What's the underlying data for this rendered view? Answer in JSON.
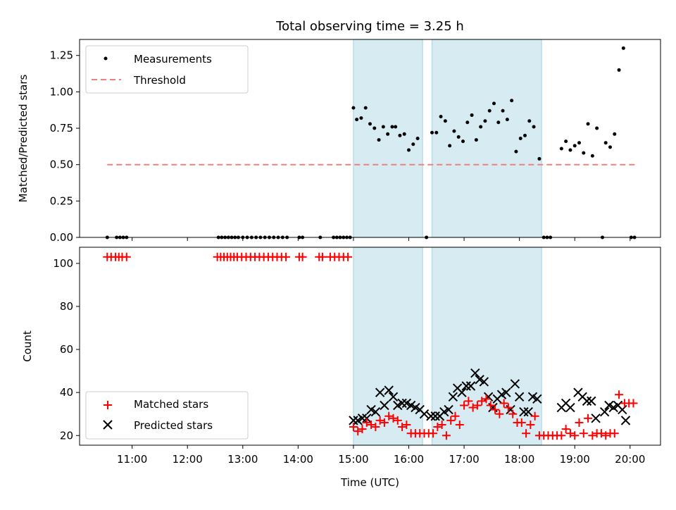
{
  "chart_data": [
    {
      "type": "scatter",
      "panel": "top",
      "title": "Total observing time = 3.25 h",
      "xlabel": "",
      "ylabel": "Matched/Predicted stars",
      "ylim": [
        0,
        1.36
      ],
      "xlim_hours": [
        10.05,
        20.55
      ],
      "yticks": [
        {
          "value": 0.0,
          "label": "0.00"
        },
        {
          "value": 0.25,
          "label": "0.25"
        },
        {
          "value": 0.5,
          "label": "0.50"
        },
        {
          "value": 0.75,
          "label": "0.75"
        },
        {
          "value": 1.0,
          "label": "1.00"
        },
        {
          "value": 1.25,
          "label": "1.25"
        }
      ],
      "legend": {
        "placement": "upper-left",
        "entries": [
          "Measurements",
          "Threshold"
        ]
      },
      "threshold": {
        "name": "Threshold",
        "value": 0.5,
        "x_range_hours": [
          10.55,
          20.1
        ],
        "color": "#f08080"
      },
      "shaded_hours": [
        [
          15.0,
          16.25
        ],
        [
          16.42,
          18.4
        ]
      ],
      "series": [
        {
          "name": "Measurements",
          "color": "#000000",
          "points": [
            [
              10.55,
              0
            ],
            [
              10.72,
              0
            ],
            [
              10.78,
              0
            ],
            [
              10.84,
              0
            ],
            [
              10.9,
              0
            ],
            [
              12.56,
              0
            ],
            [
              12.62,
              0
            ],
            [
              12.68,
              0
            ],
            [
              12.74,
              0
            ],
            [
              12.8,
              0
            ],
            [
              12.86,
              0
            ],
            [
              12.92,
              0
            ],
            [
              13.0,
              0
            ],
            [
              13.08,
              0
            ],
            [
              13.16,
              0
            ],
            [
              13.24,
              0
            ],
            [
              13.32,
              0
            ],
            [
              13.4,
              0
            ],
            [
              13.48,
              0
            ],
            [
              13.56,
              0
            ],
            [
              13.64,
              0
            ],
            [
              13.72,
              0
            ],
            [
              13.8,
              0
            ],
            [
              14.02,
              0
            ],
            [
              14.08,
              0
            ],
            [
              14.4,
              0
            ],
            [
              14.64,
              0
            ],
            [
              14.7,
              0
            ],
            [
              14.76,
              0
            ],
            [
              14.82,
              0
            ],
            [
              14.88,
              0
            ],
            [
              14.94,
              0
            ],
            [
              15.0,
              0.89
            ],
            [
              15.06,
              0.81
            ],
            [
              15.14,
              0.82
            ],
            [
              15.22,
              0.89
            ],
            [
              15.3,
              0.78
            ],
            [
              15.38,
              0.75
            ],
            [
              15.46,
              0.67
            ],
            [
              15.54,
              0.76
            ],
            [
              15.62,
              0.71
            ],
            [
              15.7,
              0.76
            ],
            [
              15.76,
              0.76
            ],
            [
              15.84,
              0.7
            ],
            [
              15.92,
              0.71
            ],
            [
              16.0,
              0.6
            ],
            [
              16.08,
              0.64
            ],
            [
              16.16,
              0.68
            ],
            [
              16.32,
              0.0
            ],
            [
              16.42,
              0.72
            ],
            [
              16.5,
              0.72
            ],
            [
              16.58,
              0.83
            ],
            [
              16.66,
              0.8
            ],
            [
              16.74,
              0.63
            ],
            [
              16.82,
              0.73
            ],
            [
              16.9,
              0.69
            ],
            [
              16.98,
              0.66
            ],
            [
              17.06,
              0.79
            ],
            [
              17.14,
              0.84
            ],
            [
              17.22,
              0.67
            ],
            [
              17.3,
              0.76
            ],
            [
              17.38,
              0.8
            ],
            [
              17.46,
              0.87
            ],
            [
              17.54,
              0.92
            ],
            [
              17.62,
              0.79
            ],
            [
              17.7,
              0.87
            ],
            [
              17.78,
              0.81
            ],
            [
              17.86,
              0.94
            ],
            [
              17.94,
              0.59
            ],
            [
              18.02,
              0.68
            ],
            [
              18.1,
              0.7
            ],
            [
              18.18,
              0.8
            ],
            [
              18.26,
              0.76
            ],
            [
              18.36,
              0.54
            ],
            [
              18.44,
              0.0
            ],
            [
              18.5,
              0.0
            ],
            [
              18.56,
              0.0
            ],
            [
              18.76,
              0.61
            ],
            [
              18.84,
              0.66
            ],
            [
              18.92,
              0.6
            ],
            [
              19.0,
              0.63
            ],
            [
              19.08,
              0.65
            ],
            [
              19.16,
              0.58
            ],
            [
              19.24,
              0.78
            ],
            [
              19.32,
              0.56
            ],
            [
              19.4,
              0.75
            ],
            [
              19.5,
              0.0
            ],
            [
              19.56,
              0.65
            ],
            [
              19.64,
              0.62
            ],
            [
              19.72,
              0.71
            ],
            [
              19.8,
              1.15
            ],
            [
              19.88,
              1.3
            ],
            [
              20.02,
              0.0
            ],
            [
              20.08,
              0.0
            ]
          ]
        }
      ]
    },
    {
      "type": "scatter",
      "panel": "bottom",
      "xlabel": "Time (UTC)",
      "ylabel": "Count",
      "ylim": [
        15.5,
        107.5
      ],
      "xlim_hours": [
        10.05,
        20.55
      ],
      "yticks": [
        {
          "value": 20,
          "label": "20"
        },
        {
          "value": 40,
          "label": "40"
        },
        {
          "value": 60,
          "label": "60"
        },
        {
          "value": 80,
          "label": "80"
        },
        {
          "value": 100,
          "label": "100"
        }
      ],
      "xticks": [
        {
          "value": 11,
          "label": "11:00"
        },
        {
          "value": 12,
          "label": "12:00"
        },
        {
          "value": 13,
          "label": "13:00"
        },
        {
          "value": 14,
          "label": "14:00"
        },
        {
          "value": 15,
          "label": "15:00"
        },
        {
          "value": 16,
          "label": "16:00"
        },
        {
          "value": 17,
          "label": "17:00"
        },
        {
          "value": 18,
          "label": "18:00"
        },
        {
          "value": 19,
          "label": "19:00"
        },
        {
          "value": 20,
          "label": "20:00"
        }
      ],
      "legend": {
        "placement": "lower-left",
        "entries": [
          "Matched stars",
          "Predicted stars"
        ]
      },
      "shaded_hours": [
        [
          15.0,
          16.25
        ],
        [
          16.42,
          18.4
        ]
      ],
      "series": [
        {
          "name": "Matched stars",
          "marker": "plus",
          "color": "#ff0000",
          "points": [
            [
              10.55,
              103
            ],
            [
              10.62,
              103
            ],
            [
              10.7,
              103
            ],
            [
              10.76,
              103
            ],
            [
              10.82,
              103
            ],
            [
              10.9,
              103
            ],
            [
              12.54,
              103
            ],
            [
              12.6,
              103
            ],
            [
              12.66,
              103
            ],
            [
              12.72,
              103
            ],
            [
              12.78,
              103
            ],
            [
              12.84,
              103
            ],
            [
              12.9,
              103
            ],
            [
              12.98,
              103
            ],
            [
              13.06,
              103
            ],
            [
              13.14,
              103
            ],
            [
              13.22,
              103
            ],
            [
              13.3,
              103
            ],
            [
              13.38,
              103
            ],
            [
              13.46,
              103
            ],
            [
              13.54,
              103
            ],
            [
              13.62,
              103
            ],
            [
              13.7,
              103
            ],
            [
              13.78,
              103
            ],
            [
              14.02,
              103
            ],
            [
              14.08,
              103
            ],
            [
              14.38,
              103
            ],
            [
              14.44,
              103
            ],
            [
              14.58,
              103
            ],
            [
              14.66,
              103
            ],
            [
              14.74,
              103
            ],
            [
              14.82,
              103
            ],
            [
              14.9,
              103
            ],
            [
              15.0,
              24
            ],
            [
              15.08,
              22
            ],
            [
              15.16,
              23
            ],
            [
              15.24,
              26
            ],
            [
              15.32,
              25
            ],
            [
              15.4,
              24
            ],
            [
              15.48,
              27
            ],
            [
              15.56,
              26
            ],
            [
              15.64,
              29
            ],
            [
              15.72,
              28
            ],
            [
              15.8,
              27
            ],
            [
              15.88,
              24
            ],
            [
              15.96,
              25
            ],
            [
              16.04,
              21
            ],
            [
              16.12,
              21
            ],
            [
              16.2,
              21
            ],
            [
              16.28,
              21
            ],
            [
              16.36,
              21
            ],
            [
              16.44,
              21
            ],
            [
              16.52,
              24
            ],
            [
              16.6,
              25
            ],
            [
              16.68,
              20
            ],
            [
              16.76,
              27
            ],
            [
              16.84,
              29
            ],
            [
              16.92,
              25
            ],
            [
              17.0,
              34
            ],
            [
              17.08,
              36
            ],
            [
              17.16,
              33
            ],
            [
              17.24,
              34
            ],
            [
              17.32,
              36
            ],
            [
              17.4,
              37
            ],
            [
              17.48,
              34
            ],
            [
              17.56,
              32
            ],
            [
              17.64,
              30
            ],
            [
              17.72,
              35
            ],
            [
              17.8,
              33
            ],
            [
              17.88,
              30
            ],
            [
              17.96,
              26
            ],
            [
              18.04,
              26
            ],
            [
              18.12,
              21
            ],
            [
              18.2,
              25
            ],
            [
              18.28,
              29
            ],
            [
              18.36,
              20
            ],
            [
              18.44,
              20
            ],
            [
              18.52,
              20
            ],
            [
              18.6,
              20
            ],
            [
              18.68,
              20
            ],
            [
              18.76,
              20
            ],
            [
              18.84,
              23
            ],
            [
              18.92,
              21
            ],
            [
              19.0,
              20
            ],
            [
              19.08,
              26
            ],
            [
              19.16,
              21
            ],
            [
              19.24,
              28
            ],
            [
              19.32,
              20
            ],
            [
              19.4,
              21
            ],
            [
              19.48,
              21
            ],
            [
              19.56,
              20
            ],
            [
              19.64,
              21
            ],
            [
              19.72,
              21
            ],
            [
              19.8,
              39
            ],
            [
              19.9,
              35
            ],
            [
              19.98,
              35
            ],
            [
              20.06,
              35
            ]
          ]
        },
        {
          "name": "Predicted stars",
          "marker": "x",
          "color": "#000000",
          "points": [
            [
              15.0,
              27
            ],
            [
              15.08,
              27
            ],
            [
              15.16,
              28
            ],
            [
              15.24,
              28
            ],
            [
              15.32,
              32
            ],
            [
              15.4,
              31
            ],
            [
              15.48,
              40
            ],
            [
              15.56,
              34
            ],
            [
              15.64,
              41
            ],
            [
              15.72,
              38
            ],
            [
              15.8,
              34
            ],
            [
              15.88,
              35
            ],
            [
              15.96,
              35
            ],
            [
              16.04,
              34
            ],
            [
              16.12,
              33
            ],
            [
              16.2,
              32
            ],
            [
              16.28,
              30
            ],
            [
              16.4,
              29
            ],
            [
              16.48,
              29
            ],
            [
              16.56,
              29
            ],
            [
              16.64,
              31
            ],
            [
              16.72,
              32
            ],
            [
              16.8,
              38
            ],
            [
              16.88,
              42
            ],
            [
              16.96,
              40
            ],
            [
              17.04,
              43
            ],
            [
              17.12,
              43
            ],
            [
              17.2,
              49
            ],
            [
              17.28,
              46
            ],
            [
              17.36,
              45
            ],
            [
              17.44,
              38
            ],
            [
              17.52,
              33
            ],
            [
              17.6,
              37
            ],
            [
              17.68,
              39
            ],
            [
              17.76,
              40
            ],
            [
              17.84,
              32
            ],
            [
              17.92,
              44
            ],
            [
              18.0,
              38
            ],
            [
              18.08,
              31
            ],
            [
              18.16,
              31
            ],
            [
              18.24,
              38
            ],
            [
              18.32,
              37
            ],
            [
              18.76,
              33
            ],
            [
              18.84,
              35
            ],
            [
              18.92,
              33
            ],
            [
              19.06,
              40
            ],
            [
              19.14,
              38
            ],
            [
              19.22,
              36
            ],
            [
              19.3,
              36
            ],
            [
              19.38,
              28
            ],
            [
              19.54,
              31
            ],
            [
              19.62,
              34
            ],
            [
              19.7,
              33
            ],
            [
              19.78,
              34
            ],
            [
              19.86,
              32
            ],
            [
              19.92,
              27
            ]
          ]
        }
      ]
    }
  ]
}
